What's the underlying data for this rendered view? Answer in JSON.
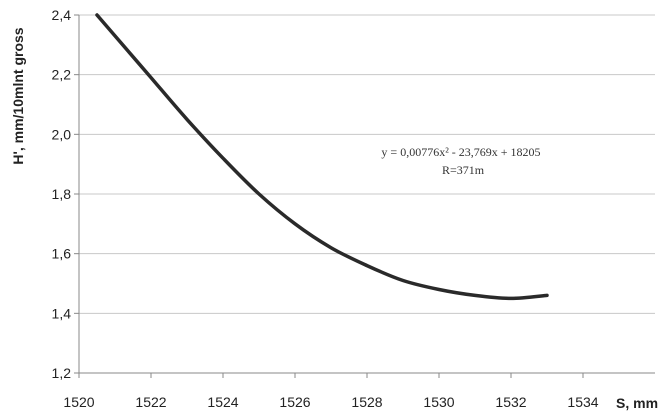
{
  "chart_data": {
    "type": "line",
    "xlabel": "S, mm",
    "ylabel": "H', mm/10mlnt gross",
    "xlim": [
      1520,
      1536
    ],
    "ylim": [
      1.2,
      2.4
    ],
    "x_ticks": [
      "1520",
      "1522",
      "1524",
      "1526",
      "1528",
      "1530",
      "1532",
      "1534"
    ],
    "y_ticks": [
      "1,2",
      "1,4",
      "1,6",
      "1,8",
      "2,0",
      "2,2",
      "2,4"
    ],
    "grid": "horizontal",
    "legend": "none",
    "line_color": "#2a2a2a",
    "annotation": {
      "equation": "y = 0,00776x² - 23,769x + 18205",
      "r_text": "R=371m"
    },
    "series": [
      {
        "points": [
          [
            1520.5,
            2.4
          ],
          [
            1521.0,
            2.33
          ],
          [
            1522.0,
            2.19
          ],
          [
            1523.0,
            2.05
          ],
          [
            1524.0,
            1.92
          ],
          [
            1525.0,
            1.8
          ],
          [
            1526.0,
            1.7
          ],
          [
            1527.0,
            1.62
          ],
          [
            1528.0,
            1.56
          ],
          [
            1529.0,
            1.51
          ],
          [
            1530.0,
            1.48
          ],
          [
            1531.0,
            1.46
          ],
          [
            1532.0,
            1.45
          ],
          [
            1533.0,
            1.46
          ]
        ]
      }
    ]
  }
}
